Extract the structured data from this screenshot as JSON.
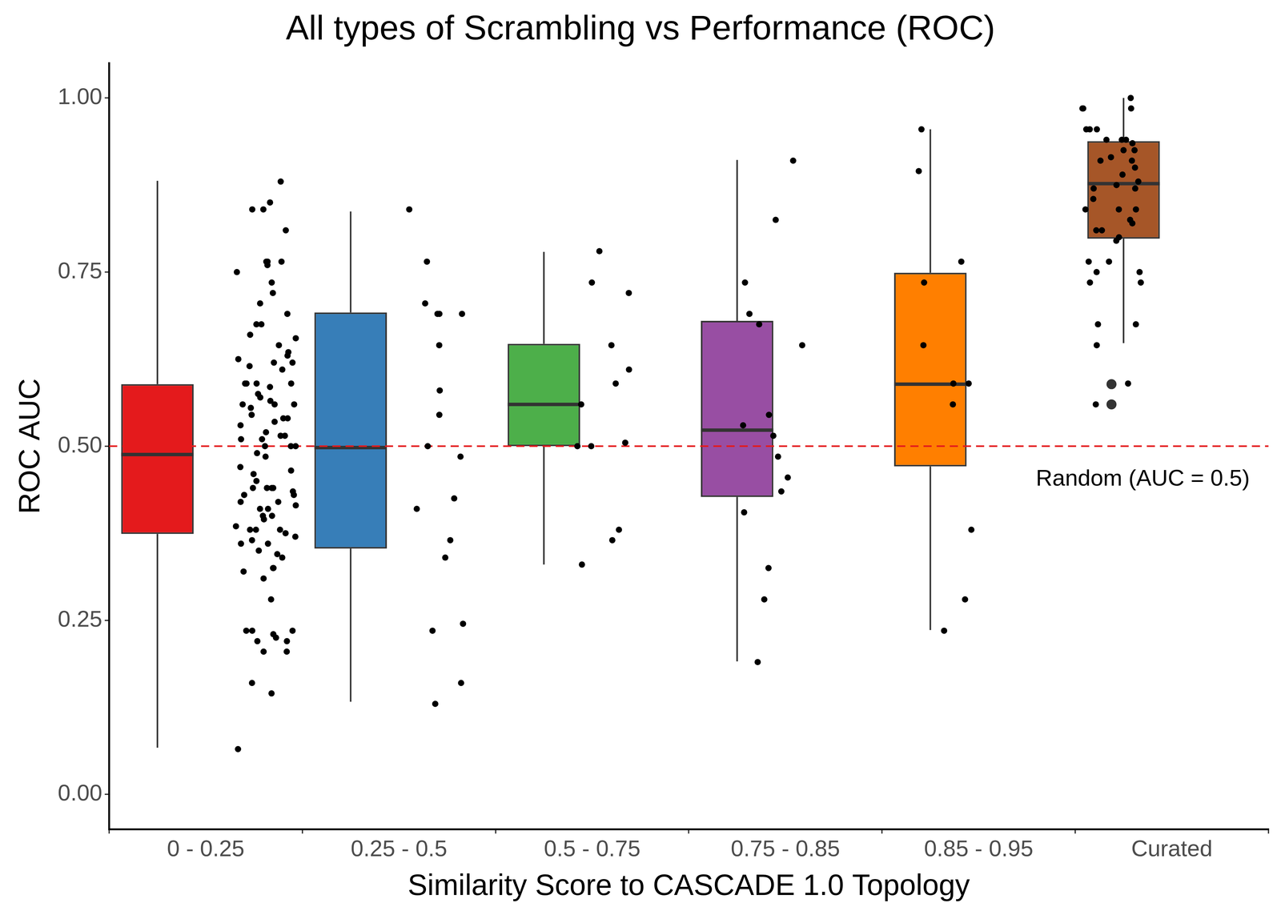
{
  "chart_data": {
    "type": "boxplot",
    "title": "All types of Scrambling vs Performance (ROC)",
    "x_label": "Similarity Score to CASCADE 1.0 Topology",
    "y_label": "ROC AUC",
    "categories": [
      "0 - 0.25",
      "0.25 - 0.5",
      "0.5 - 0.75",
      "0.75 - 0.85",
      "0.85 - 0.95",
      "Curated"
    ],
    "colors": [
      "#E41A1C",
      "#377EB8",
      "#4DAF4A",
      "#984EA3",
      "#FF7F00",
      "#A65628"
    ],
    "boxes": [
      {
        "whisker_low": 0.067,
        "q1": 0.374,
        "median": 0.488,
        "q3": 0.589,
        "whisker_high": 0.881,
        "outliers": []
      },
      {
        "whisker_low": 0.133,
        "q1": 0.353,
        "median": 0.498,
        "q3": 0.692,
        "whisker_high": 0.837,
        "outliers": []
      },
      {
        "whisker_low": 0.33,
        "q1": 0.5,
        "median": 0.56,
        "q3": 0.647,
        "whisker_high": 0.779,
        "outliers": []
      },
      {
        "whisker_low": 0.191,
        "q1": 0.427,
        "median": 0.523,
        "q3": 0.68,
        "whisker_high": 0.911,
        "outliers": []
      },
      {
        "whisker_low": 0.236,
        "q1": 0.471,
        "median": 0.589,
        "q3": 0.749,
        "whisker_high": 0.955,
        "outliers": []
      },
      {
        "whisker_low": 0.648,
        "q1": 0.798,
        "median": 0.877,
        "q3": 0.938,
        "whisker_high": 1.0,
        "outliers": [
          0.589,
          0.56
        ]
      }
    ],
    "points": [
      [
        0.88,
        0.85,
        0.84,
        0.84,
        0.81,
        0.765,
        0.765,
        0.765,
        0.76,
        0.75,
        0.735,
        0.72,
        0.705,
        0.69,
        0.675,
        0.675,
        0.66,
        0.655,
        0.645,
        0.635,
        0.63,
        0.625,
        0.62,
        0.62,
        0.615,
        0.61,
        0.59,
        0.59,
        0.59,
        0.59,
        0.585,
        0.575,
        0.57,
        0.565,
        0.56,
        0.56,
        0.56,
        0.555,
        0.545,
        0.54,
        0.54,
        0.535,
        0.53,
        0.52,
        0.515,
        0.515,
        0.51,
        0.51,
        0.5,
        0.5,
        0.5,
        0.49,
        0.485,
        0.47,
        0.465,
        0.46,
        0.45,
        0.44,
        0.44,
        0.44,
        0.44,
        0.435,
        0.43,
        0.43,
        0.42,
        0.42,
        0.415,
        0.41,
        0.41,
        0.4,
        0.4,
        0.395,
        0.385,
        0.38,
        0.38,
        0.38,
        0.375,
        0.37,
        0.365,
        0.36,
        0.36,
        0.35,
        0.345,
        0.34,
        0.325,
        0.325,
        0.32,
        0.31,
        0.28,
        0.235,
        0.235,
        0.235,
        0.23,
        0.225,
        0.22,
        0.22,
        0.205,
        0.205,
        0.16,
        0.145,
        0.065
      ],
      [
        0.84,
        0.765,
        0.705,
        0.69,
        0.69,
        0.69,
        0.645,
        0.58,
        0.545,
        0.5,
        0.485,
        0.425,
        0.41,
        0.365,
        0.34,
        0.245,
        0.235,
        0.16,
        0.13
      ],
      [
        0.78,
        0.735,
        0.72,
        0.645,
        0.61,
        0.59,
        0.56,
        0.505,
        0.5,
        0.5,
        0.38,
        0.365,
        0.33
      ],
      [
        0.91,
        0.825,
        0.735,
        0.69,
        0.675,
        0.645,
        0.545,
        0.53,
        0.515,
        0.485,
        0.455,
        0.435,
        0.405,
        0.325,
        0.28,
        0.19
      ],
      [
        0.955,
        0.895,
        0.765,
        0.735,
        0.645,
        0.59,
        0.59,
        0.56,
        0.38,
        0.28,
        0.235
      ],
      [
        1.0,
        0.985,
        0.985,
        0.985,
        0.955,
        0.955,
        0.955,
        0.94,
        0.94,
        0.94,
        0.935,
        0.925,
        0.925,
        0.915,
        0.91,
        0.91,
        0.9,
        0.89,
        0.88,
        0.875,
        0.87,
        0.87,
        0.855,
        0.84,
        0.84,
        0.84,
        0.825,
        0.82,
        0.81,
        0.81,
        0.8,
        0.795,
        0.765,
        0.765,
        0.75,
        0.75,
        0.735,
        0.735,
        0.675,
        0.675,
        0.645,
        0.59,
        0.56
      ]
    ],
    "annotations": [
      {
        "text": "Random (AUC = 0.5)",
        "y": 0.5,
        "color": "#E41A1C",
        "line_style": "dashed"
      }
    ],
    "ylim": [
      -0.05,
      1.05
    ],
    "yticks": [
      {
        "value": 0,
        "label": "0.00"
      },
      {
        "value": 0.25,
        "label": "0.25"
      },
      {
        "value": 0.5,
        "label": "0.50"
      },
      {
        "value": 0.75,
        "label": "0.75"
      },
      {
        "value": 1,
        "label": "1.00"
      }
    ],
    "grid": false,
    "legend": false
  }
}
